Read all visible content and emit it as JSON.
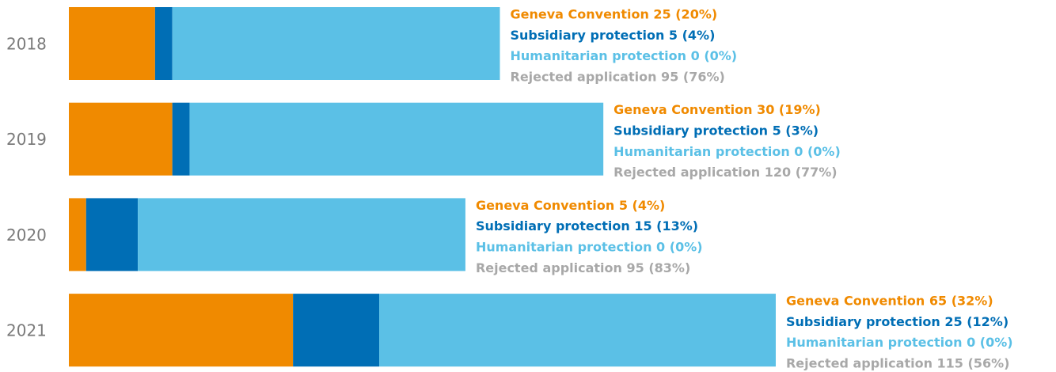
{
  "chart_data": {
    "type": "stacked-bar",
    "orientation": "horizontal",
    "categories": [
      "2018",
      "2019",
      "2020",
      "2021"
    ],
    "series": [
      {
        "name": "Geneva Convention",
        "color": "#f08a00",
        "label_color": "#f08a00",
        "values": [
          25,
          30,
          5,
          65
        ],
        "value_labels": [
          "Geneva Convention 25 (20%)",
          "Geneva Convention 30 (19%)",
          "Geneva Convention 5 (4%)",
          "Geneva Convention 65 (32%)"
        ]
      },
      {
        "name": "Subsidiary protection",
        "color": "#006eb5",
        "label_color": "#006eb5",
        "values": [
          5,
          5,
          15,
          25
        ],
        "value_labels": [
          "Subsidiary protection 5 (4%)",
          "Subsidiary protection 5 (3%)",
          "Subsidiary protection 15 (13%)",
          "Subsidiary protection 25 (12%)"
        ]
      },
      {
        "name": "Humanitarian protection",
        "color": "#5bc0e6",
        "label_color": "#5bc0e6",
        "values": [
          0,
          0,
          0,
          0
        ],
        "value_labels": [
          "Humanitarian protection 0 (0%)",
          "Humanitarian protection 0 (0%)",
          "Humanitarian protection 0 (0%)",
          "Humanitarian protection 0 (0%)"
        ]
      },
      {
        "name": "Rejected application",
        "color": "#5bc0e6",
        "label_color": "#a8a8a8",
        "values": [
          95,
          120,
          95,
          115
        ],
        "value_labels": [
          "Rejected application 95 (76%)",
          "Rejected application 120 (77%)",
          "Rejected application 95 (83%)",
          "Rejected application 115 (56%)"
        ]
      }
    ]
  }
}
